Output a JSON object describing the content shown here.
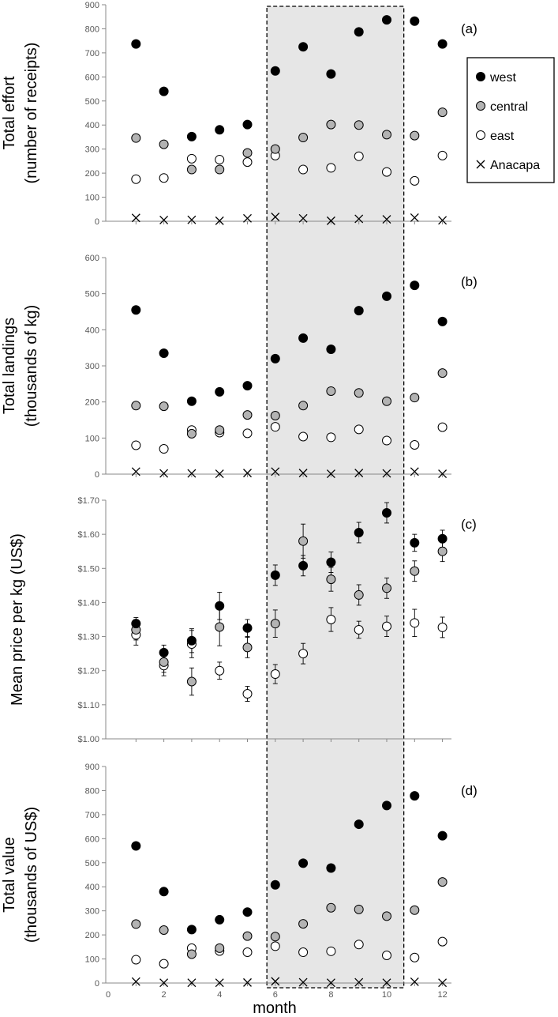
{
  "chart_data": {
    "type": "scatter",
    "xlabel": "month",
    "xlim": [
      0,
      12.5
    ],
    "xticks": [
      "0",
      "2",
      "4",
      "6",
      "8",
      "10",
      "12"
    ],
    "highlight_months": [
      6,
      10
    ],
    "legend": {
      "placement": "right",
      "items": [
        {
          "series": "west",
          "label": "west",
          "marker": "filled-black"
        },
        {
          "series": "central",
          "label": "central",
          "marker": "filled-gray"
        },
        {
          "series": "east",
          "label": "east",
          "marker": "open-circle"
        },
        {
          "series": "Anacapa",
          "label": "Anacapa",
          "marker": "x"
        }
      ]
    },
    "colors": {
      "west": "#000000",
      "central": "#b3b3b3",
      "east": "#ffffff",
      "anacapa": "#000000",
      "shade": "#e6e6e6"
    },
    "panels": [
      {
        "id": "a",
        "panel_label": "(a)",
        "ylabel": [
          "Total effort",
          "(number of receipts)"
        ],
        "ylim": [
          0,
          900
        ],
        "yticks": [
          "0",
          "100",
          "200",
          "300",
          "400",
          "500",
          "600",
          "700",
          "800",
          "900"
        ],
        "series": [
          {
            "name": "west",
            "values": [
              737,
              540,
              352,
              380,
              402,
              625,
              725,
              612,
              787,
              837,
              832,
              737
            ]
          },
          {
            "name": "central",
            "values": [
              346,
              320,
              215,
              215,
              284,
              300,
              348,
              402,
              400,
              360,
              356,
              453
            ]
          },
          {
            "name": "east",
            "values": [
              175,
              180,
              260,
              256,
              246,
              273,
              215,
              222,
              270,
              205,
              168,
              273
            ]
          },
          {
            "name": "Anacapa",
            "values": [
              14,
              5,
              6,
              2,
              12,
              18,
              12,
              2,
              10,
              8,
              15,
              4
            ]
          }
        ]
      },
      {
        "id": "b",
        "panel_label": "(b)",
        "ylabel": [
          "Total landings",
          "(thousands of kg)"
        ],
        "ylim": [
          0,
          600
        ],
        "yticks": [
          "0",
          "100",
          "200",
          "300",
          "400",
          "500",
          "600"
        ],
        "series": [
          {
            "name": "west",
            "values": [
              455,
              335,
              202,
              228,
              245,
              320,
              377,
              346,
              453,
              493,
              523,
              423
            ]
          },
          {
            "name": "central",
            "values": [
              190,
              188,
              112,
              122,
              164,
              162,
              190,
              230,
              225,
              202,
              212,
              280
            ]
          },
          {
            "name": "east",
            "values": [
              80,
              70,
              122,
              115,
              113,
              131,
              104,
              102,
              124,
              93,
              81,
              130
            ]
          },
          {
            "name": "Anacapa",
            "values": [
              7,
              2,
              2,
              1,
              3,
              7,
              3,
              1,
              3,
              2,
              7,
              1
            ]
          }
        ]
      },
      {
        "id": "c",
        "panel_label": "(c)",
        "ylabel": [
          "Mean price per kg (US$)"
        ],
        "ylim": [
          1.0,
          1.7
        ],
        "yticks": [
          "$1.00",
          "$1.10",
          "$1.20",
          "$1.30",
          "$1.40",
          "$1.50",
          "$1.60",
          "$1.70"
        ],
        "series": [
          {
            "name": "west",
            "values": [
              1.338,
              1.253,
              1.288,
              1.39,
              1.325,
              1.48,
              1.508,
              1.518,
              1.605,
              1.663,
              1.575,
              1.587
            ],
            "errors": [
              0.018,
              0.022,
              0.035,
              0.04,
              0.025,
              0.03,
              0.03,
              0.03,
              0.03,
              0.03,
              0.025,
              0.025
            ]
          },
          {
            "name": "central",
            "values": [
              1.32,
              1.225,
              1.168,
              1.328,
              1.268,
              1.338,
              1.58,
              1.468,
              1.422,
              1.442,
              1.492,
              1.55
            ],
            "errors": [
              0.03,
              0.03,
              0.04,
              0.055,
              0.03,
              0.04,
              0.05,
              0.035,
              0.03,
              0.03,
              0.03,
              0.03
            ]
          },
          {
            "name": "east",
            "values": [
              1.305,
              1.215,
              1.278,
              1.2,
              1.132,
              1.19,
              1.25,
              1.35,
              1.32,
              1.33,
              1.34,
              1.327
            ],
            "errors": [
              0.03,
              0.03,
              0.04,
              0.025,
              0.022,
              0.028,
              0.03,
              0.035,
              0.025,
              0.03,
              0.04,
              0.03
            ]
          }
        ]
      },
      {
        "id": "d",
        "panel_label": "(d)",
        "ylabel": [
          "Total value",
          "(thousands of US$)"
        ],
        "ylim": [
          0,
          900
        ],
        "yticks": [
          "0",
          "100",
          "200",
          "300",
          "400",
          "500",
          "600",
          "700",
          "800",
          "900"
        ],
        "series": [
          {
            "name": "west",
            "values": [
              570,
              380,
              222,
              263,
              295,
              408,
              498,
              478,
              660,
              738,
              778,
              612
            ]
          },
          {
            "name": "central",
            "values": [
              245,
              220,
              120,
              145,
              195,
              193,
              246,
              313,
              306,
              278,
              303,
              420
            ]
          },
          {
            "name": "east",
            "values": [
              97,
              80,
              145,
              133,
              128,
              153,
              128,
              132,
              160,
              115,
              106,
              172
            ]
          },
          {
            "name": "Anacapa",
            "values": [
              6,
              1,
              1,
              1,
              2,
              7,
              3,
              1,
              3,
              1,
              5,
              1
            ]
          }
        ]
      }
    ]
  }
}
